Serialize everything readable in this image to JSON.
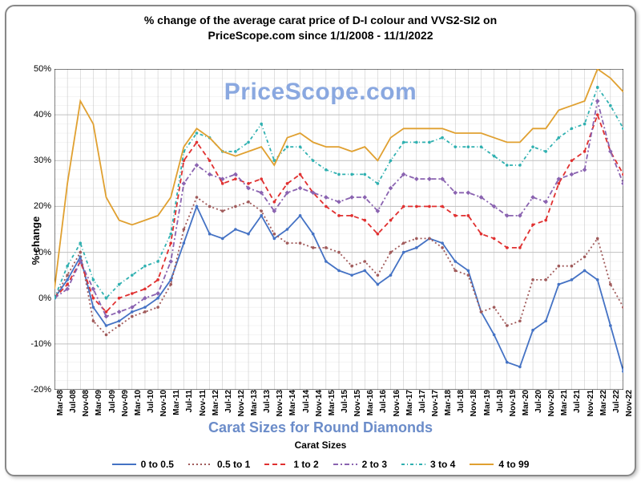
{
  "title_line1": "% change of the average carat price of  D-I colour and VVS2-SI2  on",
  "title_line2": "PriceScope.com since 1/1/2008 - 11/1/2022",
  "watermark": "PriceScope.com",
  "ylabel": "% change",
  "xlabel_main": "Carat Sizes for Round Diamonds",
  "legend_title": "Carat Sizes",
  "chart": {
    "type": "line",
    "ylim": [
      -20,
      50
    ],
    "ytick_step": 10,
    "background_color": "#ffffff",
    "grid_color": "#c0c0c0",
    "grid_minor_color": "#e8e8e8",
    "x_labels": [
      "Mar-08",
      "Jul-08",
      "Nov-08",
      "Mar-09",
      "Jul-09",
      "Nov-09",
      "Mar-10",
      "Jul-10",
      "Nov-10",
      "Mar-11",
      "Jul-11",
      "Nov-11",
      "Mar-12",
      "Jul-12",
      "Nov-12",
      "Mar-13",
      "Jul-13",
      "Nov-13",
      "Mar-14",
      "Jul-14",
      "Nov-14",
      "Mar-15",
      "Jul-15",
      "Nov-15",
      "Mar-16",
      "Jul-16",
      "Nov-16",
      "Mar-17",
      "Jul-17",
      "Nov-17",
      "Mar-18",
      "Jul-18",
      "Nov-18",
      "Mar-19",
      "Jul-19",
      "Nov-19",
      "Mar-20",
      "Jul-20",
      "Nov-20",
      "Mar-21",
      "Jul-21",
      "Nov-21",
      "Mar-22",
      "Jul-22",
      "Nov-22"
    ],
    "series": [
      {
        "name": "0 to 0.5",
        "color": "#4472c4",
        "dash": "none",
        "marker": "circle",
        "data": [
          0,
          4,
          9,
          -2,
          -6,
          -5,
          -3,
          -2,
          0,
          4,
          12,
          20,
          14,
          13,
          15,
          14,
          18,
          13,
          15,
          18,
          14,
          8,
          6,
          5,
          6,
          3,
          5,
          10,
          11,
          13,
          12,
          8,
          6,
          -3,
          -8,
          -14,
          -15,
          -7,
          -5,
          3,
          4,
          6,
          4,
          -6,
          -16
        ]
      },
      {
        "name": "0.5 to 1",
        "color": "#a05a5a",
        "dash": "2,3",
        "marker": "circle",
        "data": [
          0,
          5,
          10,
          -5,
          -8,
          -6,
          -4,
          -3,
          -2,
          3,
          15,
          22,
          20,
          19,
          20,
          21,
          19,
          14,
          12,
          12,
          11,
          11,
          10,
          7,
          8,
          5,
          10,
          12,
          13,
          13,
          11,
          6,
          5,
          -3,
          -2,
          -6,
          -5,
          4,
          4,
          7,
          7,
          9,
          13,
          3,
          -2
        ]
      },
      {
        "name": "1 to 2",
        "color": "#e03030",
        "dash": "6,4",
        "marker": "circle",
        "data": [
          0,
          3,
          8,
          0,
          -3,
          0,
          1,
          2,
          4,
          12,
          30,
          34,
          30,
          25,
          26,
          25,
          26,
          21,
          25,
          27,
          23,
          20,
          18,
          18,
          17,
          14,
          17,
          20,
          20,
          20,
          20,
          18,
          18,
          14,
          13,
          11,
          11,
          16,
          17,
          25,
          30,
          32,
          40,
          32,
          27
        ]
      },
      {
        "name": "2 to 3",
        "color": "#8a63b0",
        "dash": "6,3,2,3",
        "marker": "diamond",
        "data": [
          0,
          2,
          8,
          2,
          -4,
          -3,
          -2,
          0,
          1,
          8,
          25,
          29,
          27,
          26,
          27,
          24,
          23,
          19,
          23,
          24,
          23,
          22,
          21,
          22,
          22,
          19,
          24,
          27,
          26,
          26,
          26,
          23,
          23,
          22,
          20,
          18,
          18,
          22,
          21,
          26,
          27,
          28,
          43,
          32,
          25
        ]
      },
      {
        "name": "3 to 4",
        "color": "#2fb0b0",
        "dash": "4,3,1,3",
        "marker": "circle",
        "data": [
          0,
          7,
          12,
          4,
          0,
          3,
          5,
          7,
          8,
          14,
          32,
          36,
          35,
          32,
          32,
          34,
          38,
          30,
          33,
          33,
          30,
          28,
          27,
          27,
          27,
          25,
          30,
          34,
          34,
          34,
          35,
          33,
          33,
          33,
          31,
          29,
          29,
          33,
          32,
          35,
          37,
          38,
          46,
          42,
          37
        ]
      },
      {
        "name": "4 to 99",
        "color": "#e0a030",
        "dash": "none",
        "marker": "none",
        "data": [
          2,
          25,
          43,
          38,
          22,
          17,
          16,
          17,
          18,
          22,
          33,
          37,
          35,
          32,
          31,
          32,
          33,
          29,
          35,
          36,
          34,
          33,
          33,
          32,
          33,
          30,
          35,
          37,
          37,
          37,
          37,
          36,
          36,
          36,
          35,
          34,
          34,
          37,
          37,
          41,
          42,
          43,
          50,
          48,
          45
        ]
      }
    ]
  },
  "legend_items": [
    {
      "label": "0 to 0.5"
    },
    {
      "label": "0.5 to 1"
    },
    {
      "label": "1 to 2"
    },
    {
      "label": "2 to 3"
    },
    {
      "label": "3 to 4"
    },
    {
      "label": "4 to 99"
    }
  ]
}
